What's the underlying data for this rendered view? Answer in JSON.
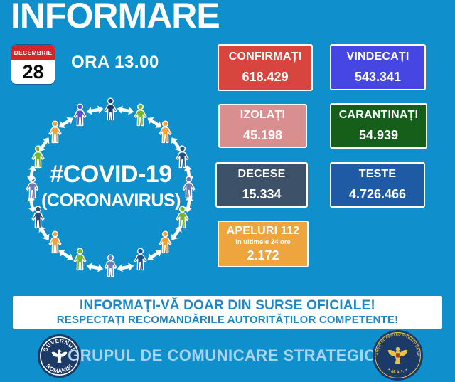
{
  "title": "INFORMARE",
  "date": {
    "month": "DECEMBRIE",
    "day": "28",
    "time": "ORA 13.00"
  },
  "center": {
    "hashtag": "#COVID-19",
    "subtitle": "(CORONAVIRUS)",
    "icon_colors": [
      "#1b3a6b",
      "#76b82a",
      "#f0a13e",
      "#27527d",
      "#707ab0",
      "#76b82a",
      "#f0a13e",
      "#1e4f8c",
      "#707ab0",
      "#76b82a",
      "#f0a13e",
      "#2b4a77",
      "#707ab0",
      "#76b82a",
      "#f0a13e",
      "#5b4fd0"
    ]
  },
  "stats": [
    {
      "label": "CONFIRMAȚI",
      "value": "618.429",
      "bg": "#d8453f"
    },
    {
      "label": "VINDECAȚI",
      "value": "543.341",
      "bg": "#4646e2"
    },
    {
      "label": "IZOLAȚI",
      "value": "45.198",
      "bg": "#d98f8f"
    },
    {
      "label": "CARANTINAȚI",
      "value": "54.939",
      "bg": "#155f1b"
    },
    {
      "label": "DECESE",
      "value": "15.334",
      "bg": "#3d5168"
    },
    {
      "label": "TESTE",
      "value": "4.726.466",
      "bg": "#1f5ba5"
    },
    {
      "label": "APELURI 112",
      "note": "în ultimele 24 ore",
      "value": "2.172",
      "bg": "#efa53d"
    }
  ],
  "banner": {
    "line1": "INFORMAȚI-VĂ DOAR DIN SURSE OFICIALE!",
    "line2": "RESPECTAȚI RECOMANDĂRILE AUTORITĂȚILOR COMPETENTE!"
  },
  "footer": {
    "group_label": "GRUPUL DE COMUNICARE STRATEGICĂ",
    "left_seal": {
      "top": "GUVERNUL",
      "bottom": "ROMÂNIEI"
    },
    "right_seal": {
      "top": "DEPARTAMENTUL PENTRU SITUAȚII DE URGENȚĂ",
      "bottom": "• M.A.I. •"
    }
  },
  "colors": {
    "background": "#0f8fcb",
    "banner_text": "#1d86c6",
    "footer_text": "#aad4ee",
    "seal_navy": "#1b3a68",
    "seal_gold": "#eac43e",
    "seal_red": "#b8372f",
    "calendar_red": "#d5262b",
    "box_border": "#ffffff",
    "arrow": "#ffffff"
  }
}
